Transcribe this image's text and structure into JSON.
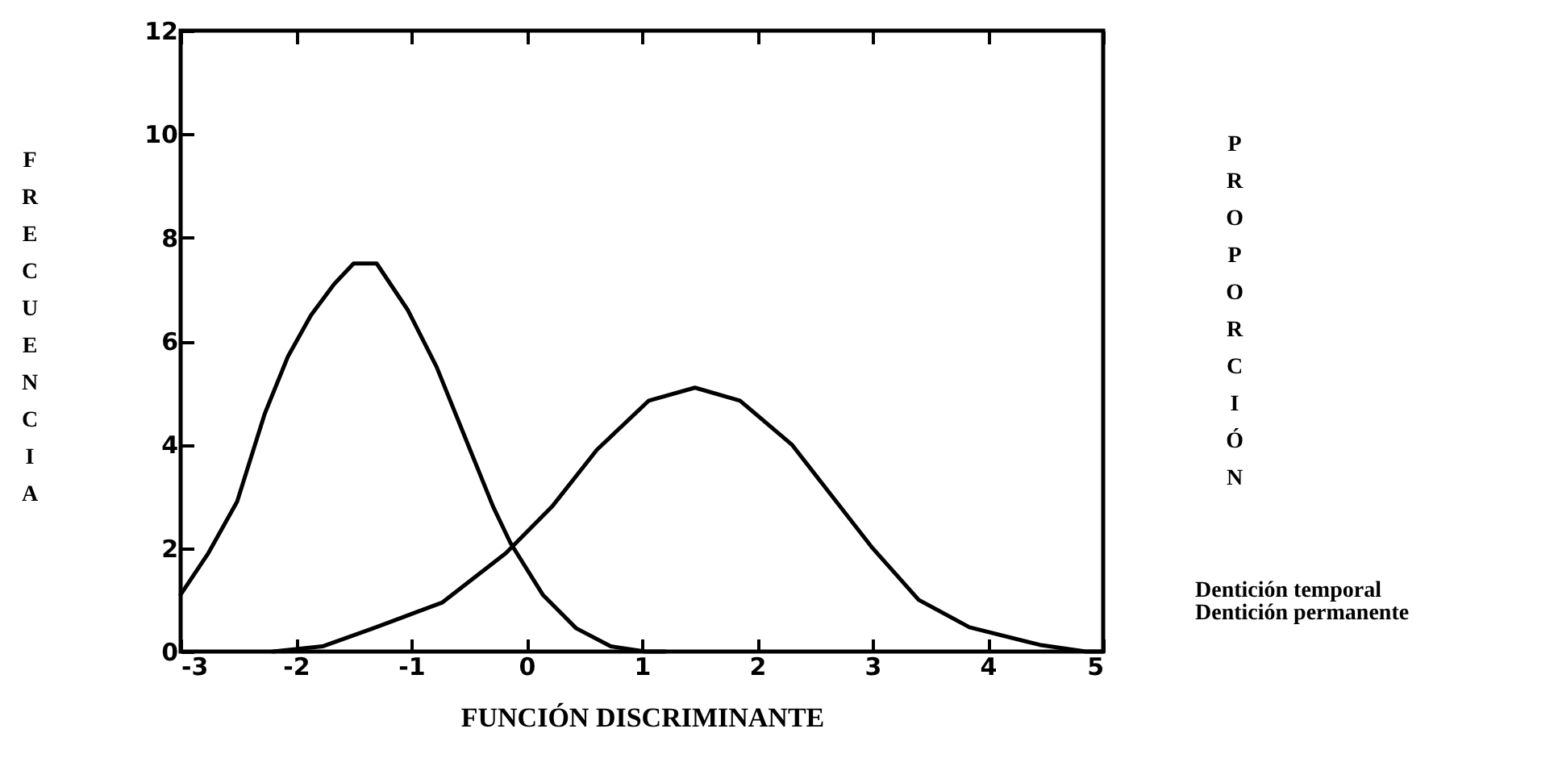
{
  "chart_data": {
    "type": "line",
    "xlabel": "FUNCIÓN DISCRIMINANTE",
    "ylabel": "FRECUENCIA",
    "y2label": "PROPORCIÓN",
    "xlim": [
      -3,
      5
    ],
    "ylim": [
      0,
      12
    ],
    "xticks": [
      -3,
      -2,
      -1,
      0,
      1,
      2,
      3,
      4,
      5
    ],
    "yticks": [
      0,
      2,
      4,
      6,
      8,
      10,
      12
    ],
    "grid": false,
    "legend": "right",
    "line_style": "solid",
    "marker": "none",
    "series": [
      {
        "name": "Dentición temporal",
        "color": "#000000",
        "x": [
          -3,
          -2.76,
          -2.51,
          -2.27,
          -2.07,
          -1.87,
          -1.67,
          -1.5,
          -1.3,
          -1.03,
          -0.78,
          -0.49,
          -0.29,
          -0.14,
          0.14,
          0.43,
          0.73,
          1.03,
          1.2
        ],
        "values": [
          1.1,
          1.9,
          2.9,
          4.6,
          5.7,
          6.5,
          7.1,
          7.5,
          7.5,
          6.6,
          5.5,
          3.9,
          2.8,
          2.1,
          1.1,
          0.45,
          0.1,
          0,
          0
        ]
      },
      {
        "name": "Dentición permanente",
        "color": "#000000",
        "x": [
          -2.2,
          -1.77,
          -1.33,
          -0.73,
          -0.18,
          0.22,
          0.61,
          1.06,
          1.46,
          1.85,
          2.3,
          2.65,
          3.0,
          3.4,
          3.84,
          4.45,
          4.85,
          5
        ],
        "values": [
          0,
          0.1,
          0.45,
          0.95,
          1.9,
          2.8,
          3.9,
          4.85,
          5.1,
          4.85,
          4.0,
          3.0,
          2.0,
          1.0,
          0.47,
          0.13,
          0,
          0
        ]
      }
    ]
  }
}
